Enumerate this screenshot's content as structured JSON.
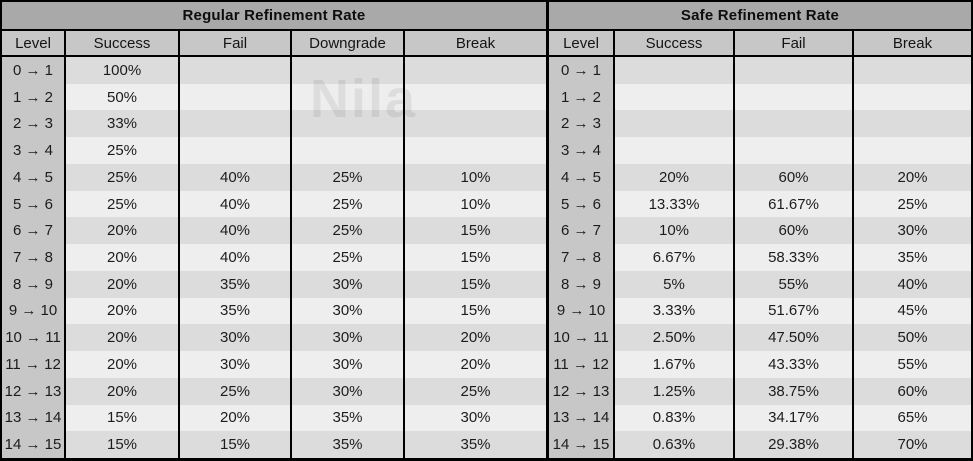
{
  "watermark": "Nila",
  "colors": {
    "banner_bg": "#a9a9a9",
    "header_bg": "#c7c7c7",
    "level_column_bg": "#c7c7c7",
    "row_stripe_dark": "#dcdcdc",
    "row_stripe_light": "#eeeeee",
    "border": "#000000",
    "text": "#1c1c1c"
  },
  "chart_data": [
    {
      "type": "table",
      "title": "Regular Refinement Rate",
      "columns": [
        "Level",
        "Success",
        "Fail",
        "Downgrade",
        "Break"
      ],
      "rows": [
        [
          "0 → 1",
          "100%",
          "",
          "",
          ""
        ],
        [
          "1 → 2",
          "50%",
          "",
          "",
          ""
        ],
        [
          "2 → 3",
          "33%",
          "",
          "",
          ""
        ],
        [
          "3 → 4",
          "25%",
          "",
          "",
          ""
        ],
        [
          "4 → 5",
          "25%",
          "40%",
          "25%",
          "10%"
        ],
        [
          "5 → 6",
          "25%",
          "40%",
          "25%",
          "10%"
        ],
        [
          "6 → 7",
          "20%",
          "40%",
          "25%",
          "15%"
        ],
        [
          "7 → 8",
          "20%",
          "40%",
          "25%",
          "15%"
        ],
        [
          "8 → 9",
          "20%",
          "35%",
          "30%",
          "15%"
        ],
        [
          "9 → 10",
          "20%",
          "35%",
          "30%",
          "15%"
        ],
        [
          "10 → 11",
          "20%",
          "30%",
          "30%",
          "20%"
        ],
        [
          "11 → 12",
          "20%",
          "30%",
          "30%",
          "20%"
        ],
        [
          "12 → 13",
          "20%",
          "25%",
          "30%",
          "25%"
        ],
        [
          "13 → 14",
          "15%",
          "20%",
          "35%",
          "30%"
        ],
        [
          "14 → 15",
          "15%",
          "15%",
          "35%",
          "35%"
        ]
      ]
    },
    {
      "type": "table",
      "title": "Safe Refinement Rate",
      "columns": [
        "Level",
        "Success",
        "Fail",
        "Break"
      ],
      "rows": [
        [
          "0 → 1",
          "",
          "",
          ""
        ],
        [
          "1 → 2",
          "",
          "",
          ""
        ],
        [
          "2 → 3",
          "",
          "",
          ""
        ],
        [
          "3 → 4",
          "",
          "",
          ""
        ],
        [
          "4 → 5",
          "20%",
          "60%",
          "20%"
        ],
        [
          "5 → 6",
          "13.33%",
          "61.67%",
          "25%"
        ],
        [
          "6 → 7",
          "10%",
          "60%",
          "30%"
        ],
        [
          "7 → 8",
          "6.67%",
          "58.33%",
          "35%"
        ],
        [
          "8 → 9",
          "5%",
          "55%",
          "40%"
        ],
        [
          "9 → 10",
          "3.33%",
          "51.67%",
          "45%"
        ],
        [
          "10 → 11",
          "2.50%",
          "47.50%",
          "50%"
        ],
        [
          "11 → 12",
          "1.67%",
          "43.33%",
          "55%"
        ],
        [
          "12 → 13",
          "1.25%",
          "38.75%",
          "60%"
        ],
        [
          "13 → 14",
          "0.83%",
          "34.17%",
          "65%"
        ],
        [
          "14 → 15",
          "0.63%",
          "29.38%",
          "70%"
        ]
      ]
    }
  ]
}
